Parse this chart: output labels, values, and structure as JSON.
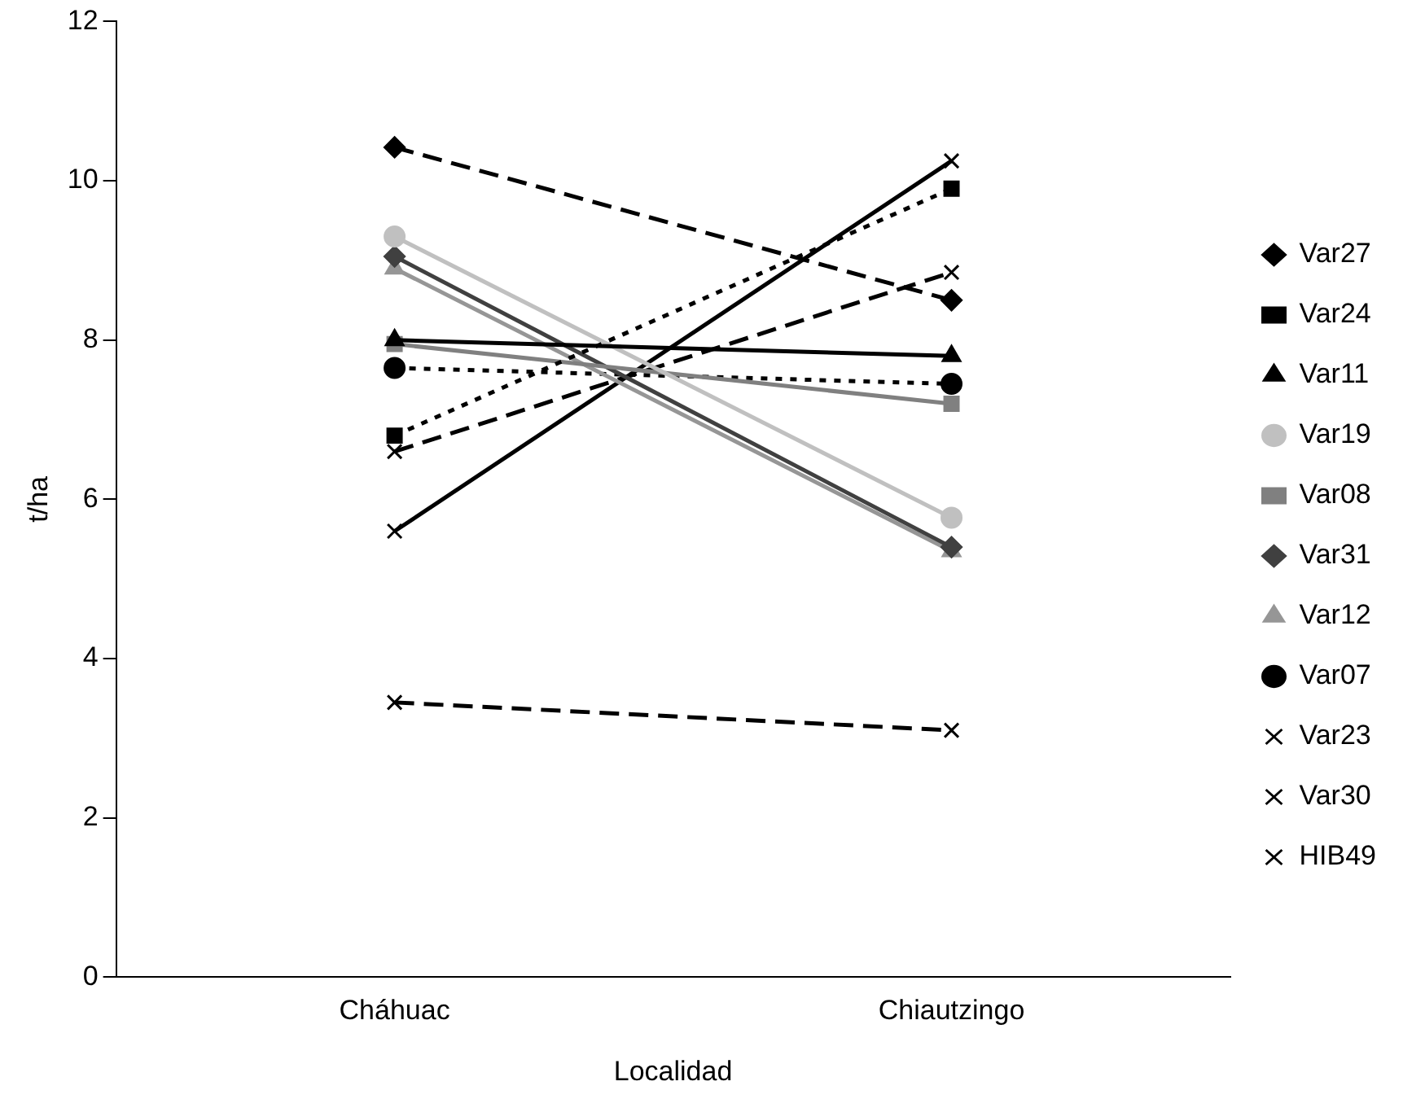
{
  "chart_data": {
    "type": "line",
    "xlabel": "Localidad",
    "ylabel": "t/ha",
    "categories": [
      "Cháhuac",
      "Chiautzingo"
    ],
    "ylim": [
      0,
      12
    ],
    "yticks": [
      0,
      2,
      4,
      6,
      8,
      10,
      12
    ],
    "grid": false,
    "legend": "right",
    "series": [
      {
        "name": "Var27",
        "color": "#000000",
        "values": [
          10.42,
          8.5
        ],
        "marker": "diamond",
        "line_style": "dashed"
      },
      {
        "name": "Var24",
        "color": "#000000",
        "values": [
          6.8,
          9.9
        ],
        "marker": "square",
        "line_style": "dotted"
      },
      {
        "name": "Var11",
        "color": "#000000",
        "values": [
          8.0,
          7.8
        ],
        "marker": "triangle",
        "line_style": "solid"
      },
      {
        "name": "Var19",
        "color": "#c0c0c0",
        "values": [
          9.3,
          5.77
        ],
        "marker": "circle",
        "line_style": "solid"
      },
      {
        "name": "Var08",
        "color": "#808080",
        "values": [
          7.95,
          7.2
        ],
        "marker": "square",
        "line_style": "solid"
      },
      {
        "name": "Var31",
        "color": "#404040",
        "values": [
          9.05,
          5.4
        ],
        "marker": "diamond",
        "line_style": "solid"
      },
      {
        "name": "Var12",
        "color": "#969696",
        "values": [
          8.9,
          5.35
        ],
        "marker": "triangle",
        "line_style": "solid"
      },
      {
        "name": "Var07",
        "color": "#000000",
        "values": [
          7.65,
          7.45
        ],
        "marker": "circle",
        "line_style": "dotted"
      },
      {
        "name": "Var23",
        "color": "#000000",
        "values": [
          6.6,
          8.85
        ],
        "marker": "cross",
        "line_style": "dashed"
      },
      {
        "name": "Var30",
        "color": "#000000",
        "values": [
          5.6,
          10.25
        ],
        "marker": "cross",
        "line_style": "solid"
      },
      {
        "name": "HIB49",
        "color": "#000000",
        "values": [
          3.45,
          3.1
        ],
        "marker": "cross",
        "line_style": "dashed"
      }
    ]
  }
}
